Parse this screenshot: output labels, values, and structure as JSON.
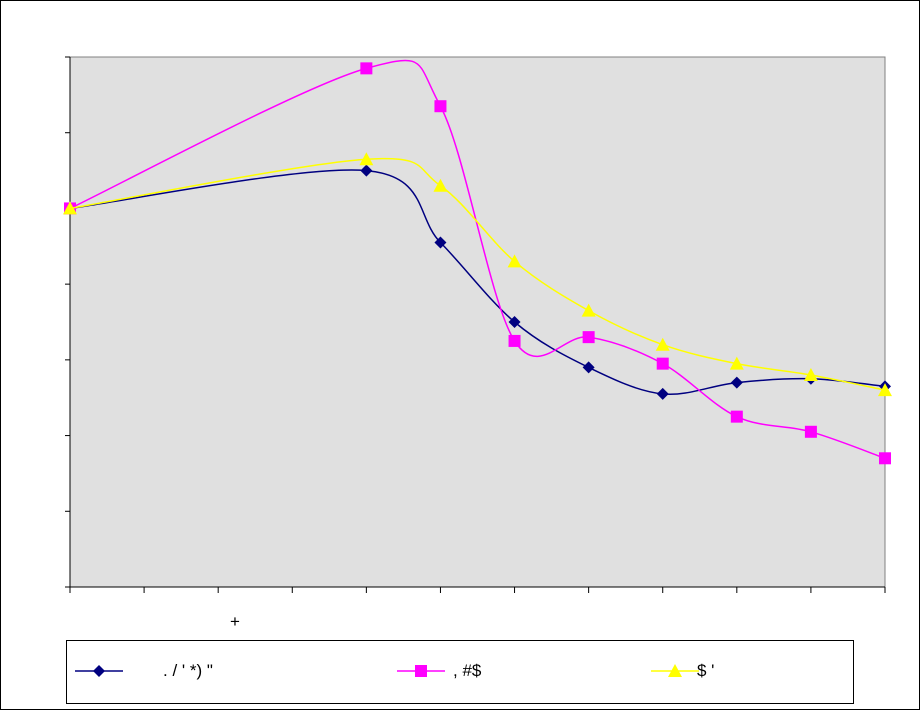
{
  "chart_data": {
    "type": "line",
    "title": "",
    "xlabel": "+",
    "ylabel": "",
    "x": [
      1,
      2,
      3,
      4,
      5,
      6,
      7,
      8,
      9,
      10,
      11,
      12
    ],
    "xlim": [
      1,
      12
    ],
    "ylim": [
      0,
      7
    ],
    "plot_background": "#e0e0e0",
    "legend_position": "bottom",
    "series": [
      {
        "name": ". / ' *) \"",
        "color": "#000080",
        "marker": "diamond",
        "x": [
          1,
          5,
          6,
          7,
          8,
          9,
          10,
          11,
          12
        ],
        "values": [
          5.0,
          5.5,
          4.55,
          3.5,
          2.9,
          2.55,
          2.7,
          2.75,
          2.65
        ]
      },
      {
        "name": ", #$",
        "color": "#ff00ff",
        "marker": "square",
        "x": [
          1,
          5,
          6,
          7,
          8,
          9,
          10,
          11,
          12
        ],
        "values": [
          5.0,
          6.85,
          6.35,
          3.25,
          3.3,
          2.95,
          2.25,
          2.05,
          1.7
        ]
      },
      {
        "name": "$ '",
        "color": "#ffff00",
        "marker": "triangle",
        "x": [
          1,
          5,
          6,
          7,
          8,
          9,
          10,
          11,
          12
        ],
        "values": [
          5.0,
          5.65,
          5.3,
          4.3,
          3.65,
          3.2,
          2.95,
          2.8,
          2.6
        ]
      }
    ]
  }
}
